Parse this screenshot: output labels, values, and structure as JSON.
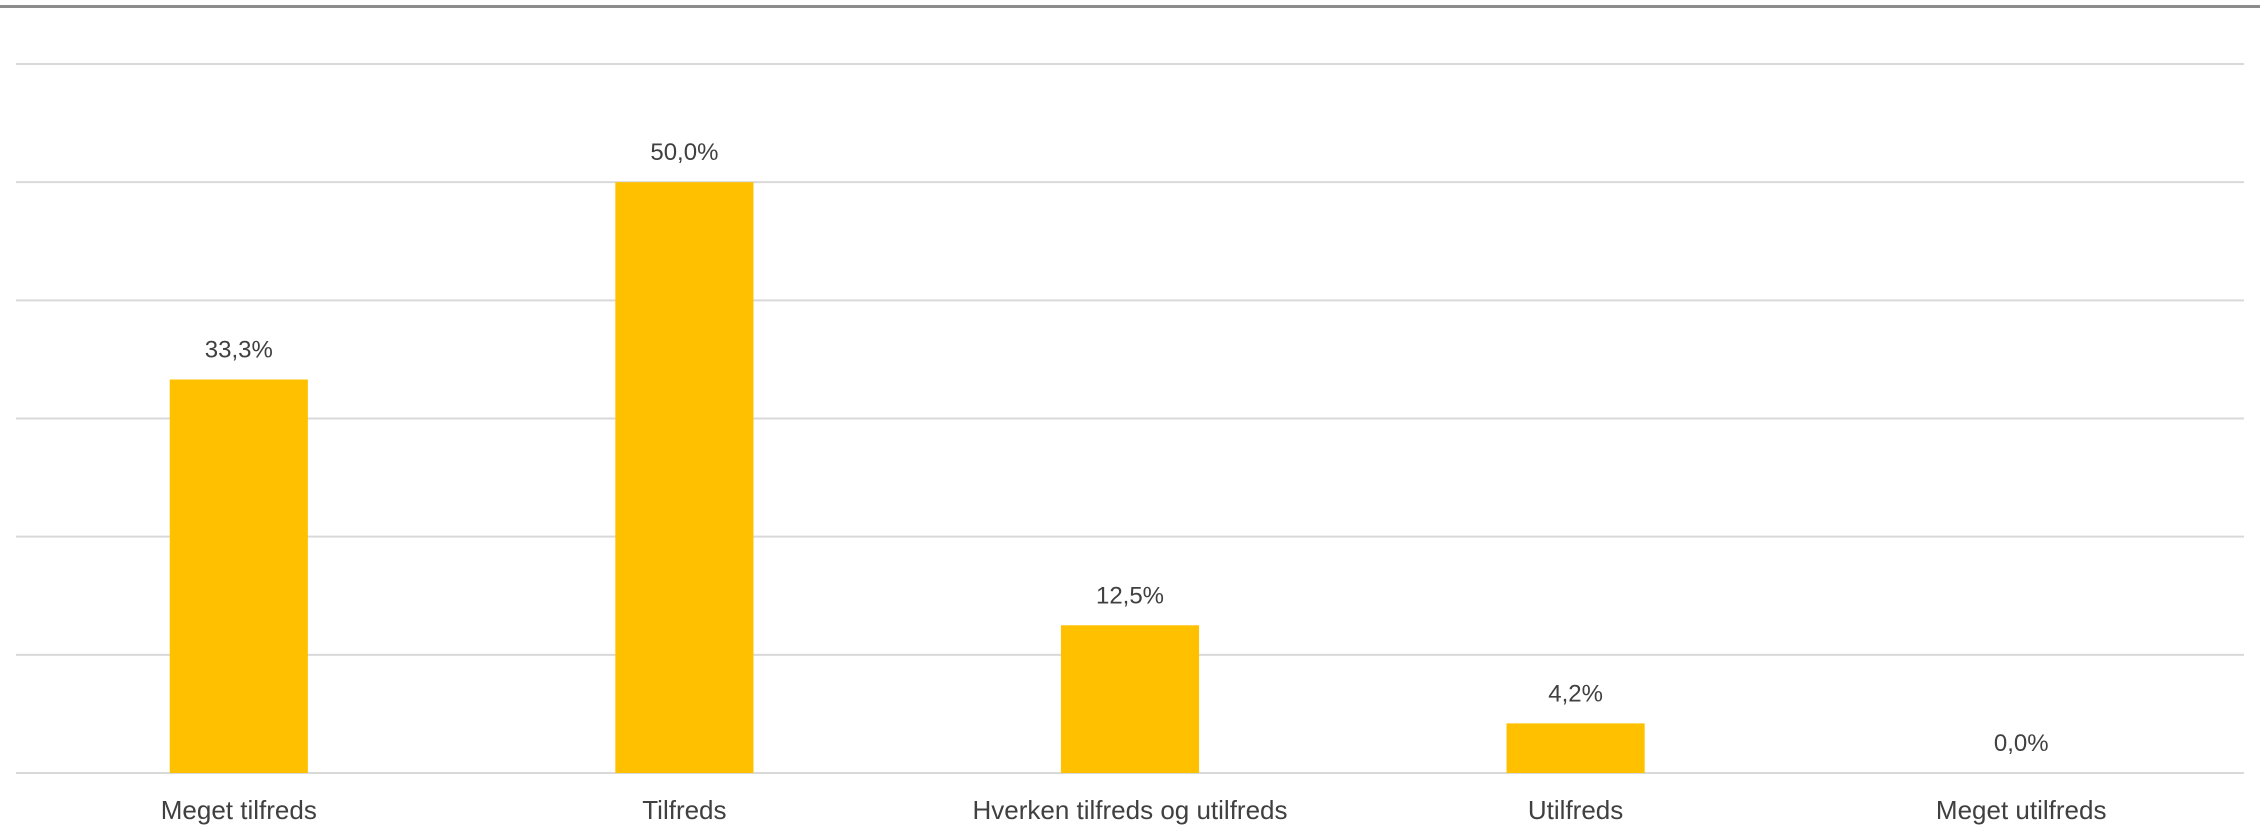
{
  "chart_data": {
    "type": "bar",
    "categories": [
      "Meget tilfreds",
      "Tilfreds",
      "Hverken tilfreds og utilfreds",
      "Utilfreds",
      "Meget utilfreds"
    ],
    "values": [
      33.3,
      50.0,
      12.5,
      4.2,
      0.0
    ],
    "data_labels": [
      "33,3%",
      "50,0%",
      "12,5%",
      "4,2%",
      "0,0%"
    ],
    "ylim": [
      0,
      60
    ],
    "grid_step": 10,
    "grid": true,
    "legend": "none",
    "title": "",
    "xlabel": "",
    "ylabel": "",
    "bar_color": "#FFC000",
    "grid_color": "#D9D9D9",
    "text_color": "#404040"
  }
}
